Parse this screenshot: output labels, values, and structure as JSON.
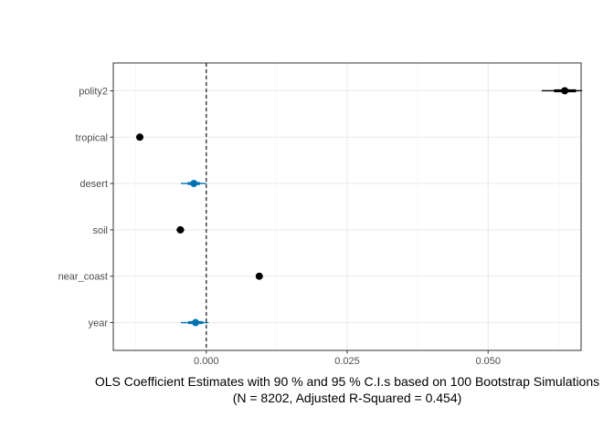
{
  "chart_data": {
    "type": "scatter",
    "subtype": "coefficient-plot",
    "xlabel": "OLS Coefficient Estimates with 90 % and 95 % C.I.s based on 100 Bootstrap Simulations",
    "xlabel_line2": "(N = 8202, Adjusted R-Squared = 0.454)",
    "ylabel": "",
    "xlim": [
      -0.0165,
      0.0665
    ],
    "x_ticks": [
      0,
      0.025,
      0.05
    ],
    "x_tick_labels": [
      "0.000",
      "0.025",
      "0.050"
    ],
    "reference_line": {
      "x": 0,
      "style": "dashed",
      "color": "#000000"
    },
    "grid": true,
    "legend": "none",
    "significant_color": "#000000",
    "insignificant_color": "#0072B2",
    "series": [
      {
        "label": "polity2",
        "estimate": 0.0636,
        "ci90": [
          0.0617,
          0.0656
        ],
        "ci95": [
          0.0595,
          0.0667
        ],
        "significant": true
      },
      {
        "label": "tropical",
        "estimate": -0.0118,
        "ci90": [
          -0.0121,
          -0.0115
        ],
        "ci95": [
          -0.0123,
          -0.0113
        ],
        "significant": true
      },
      {
        "label": "desert",
        "estimate": -0.0022,
        "ci90": [
          -0.0033,
          -0.0011
        ],
        "ci95": [
          -0.0045,
          0.0
        ],
        "significant": false
      },
      {
        "label": "soil",
        "estimate": -0.0046,
        "ci90": [
          -0.005,
          -0.0042
        ],
        "ci95": [
          -0.0053,
          -0.0039
        ],
        "significant": true
      },
      {
        "label": "near_coast",
        "estimate": 0.0094,
        "ci90": [
          0.0091,
          0.0097
        ],
        "ci95": [
          0.0089,
          0.0099
        ],
        "significant": true
      },
      {
        "label": "year",
        "estimate": -0.0019,
        "ci90": [
          -0.0032,
          -0.0006
        ],
        "ci95": [
          -0.0045,
          0.0004
        ],
        "significant": false
      }
    ]
  }
}
